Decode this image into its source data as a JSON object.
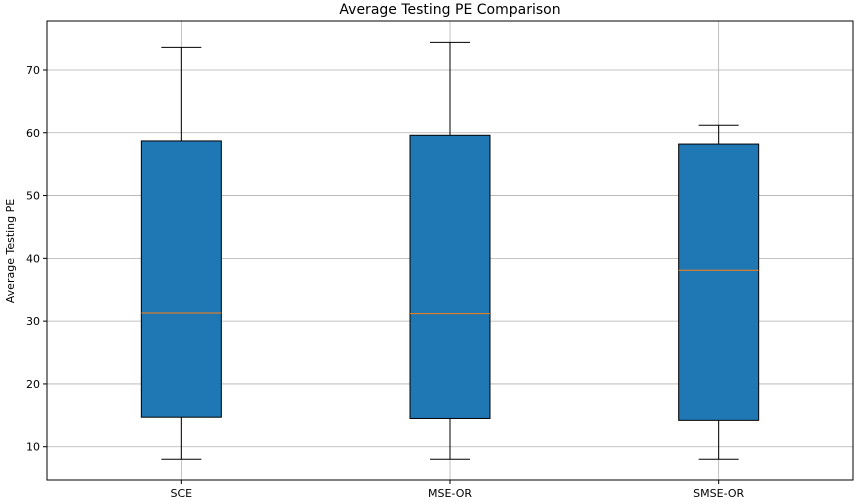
{
  "chart_data": {
    "type": "box",
    "title": "Average Testing PE Comparison",
    "xlabel": "",
    "ylabel": "Average Testing PE",
    "categories": [
      "SCE",
      "MSE-OR",
      "SMSE-OR"
    ],
    "boxes": [
      {
        "category": "SCE",
        "whisker_low": 8.0,
        "q1": 14.7,
        "median": 31.3,
        "q3": 58.7,
        "whisker_high": 73.6
      },
      {
        "category": "MSE-OR",
        "whisker_low": 8.0,
        "q1": 14.5,
        "median": 31.2,
        "q3": 59.6,
        "whisker_high": 74.4
      },
      {
        "category": "SMSE-OR",
        "whisker_low": 8.0,
        "q1": 14.2,
        "median": 38.1,
        "q3": 58.2,
        "whisker_high": 61.2
      }
    ],
    "yticks": [
      10,
      20,
      30,
      40,
      50,
      60,
      70
    ],
    "ylim": [
      4.7,
      77.8
    ],
    "grid": true,
    "colors": {
      "box": "#1f77b4",
      "median": "#ff7f0e"
    }
  }
}
